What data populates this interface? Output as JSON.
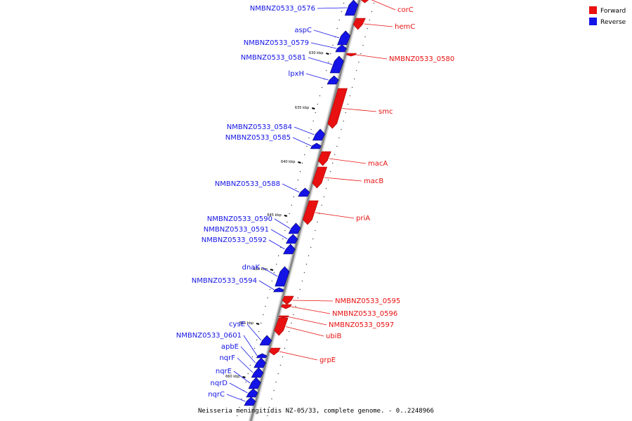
{
  "caption": "Neisseria meningitidis NZ-05/33, complete genome. - 0..2248966",
  "colors": {
    "forward": "#e81010",
    "reverse": "#1414e6",
    "backbone": "#888888"
  },
  "legend": [
    {
      "label": "Forward",
      "color": "#e81010"
    },
    {
      "label": "Reverse",
      "color": "#1414e6"
    }
  ],
  "scale_ticks": [
    "630 kbp",
    "635 kbp",
    "640 kbp",
    "645 kbp",
    "650 kbp",
    "655 kbp",
    "660 kbp"
  ],
  "genes_forward": [
    "corC",
    "hemC",
    "NMBNZ0533_0580",
    "smc",
    "macA",
    "macB",
    "priA",
    "NMBNZ0533_0595",
    "NMBNZ0533_0596",
    "NMBNZ0533_0597",
    "ubiB",
    "grpE"
  ],
  "genes_reverse": [
    "NMBNZ0533_0576",
    "aspC",
    "NMBNZ0533_0579",
    "NMBNZ0533_0581",
    "lpxH",
    "NMBNZ0533_0584",
    "NMBNZ0533_0585",
    "NMBNZ0533_0588",
    "NMBNZ0533_0590",
    "NMBNZ0533_0591",
    "NMBNZ0533_0592",
    "dnaK",
    "NMBNZ0533_0594",
    "cysE",
    "NMBNZ0533_0601",
    "apbE",
    "nqrF",
    "nqrE",
    "nqrD",
    "nqrC"
  ]
}
